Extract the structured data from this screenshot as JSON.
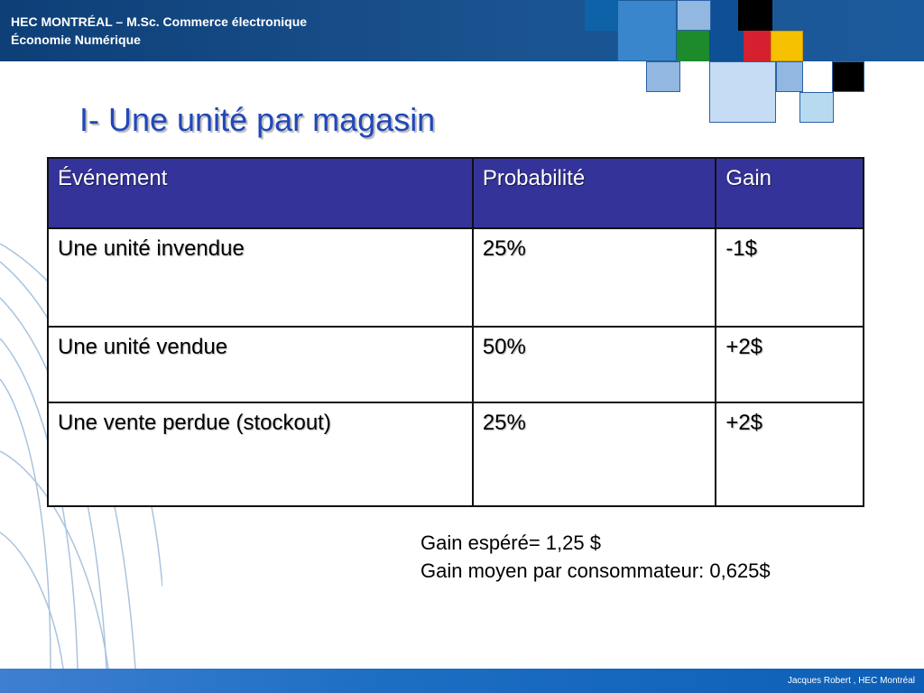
{
  "header": {
    "line1": "HEC MONTRÉAL – M.Sc. Commerce électronique",
    "line2": "Économie Numérique"
  },
  "title": "I- Une unité par magasin",
  "table": {
    "headers": [
      "Événement",
      "Probabilité",
      "Gain"
    ],
    "rows": [
      [
        "Une unité invendue",
        "25%",
        "-1$"
      ],
      [
        "Une unité vendue",
        "50%",
        "+2$"
      ],
      [
        "Une vente perdue (stockout)",
        "25%",
        "+2$"
      ]
    ]
  },
  "summary": {
    "line1": "Gain espéré= 1,25 $",
    "line2": "Gain moyen par consommateur: 0,625$"
  },
  "footer": {
    "text": "Jacques Robert , HEC Montréal"
  },
  "colors": {
    "header_bg": "#1a5390",
    "title": "#2148b8",
    "table_header_bg": "#343399",
    "footer_bg": "#1d6fc4",
    "deco_squares": [
      "#0d62a8",
      "#3a86cc",
      "#92b7e0",
      "#0e4f95",
      "#000000",
      "#1d8a2c",
      "#d61f2f",
      "#f5c000",
      "#c6dcf4",
      "#b8daf0"
    ]
  }
}
